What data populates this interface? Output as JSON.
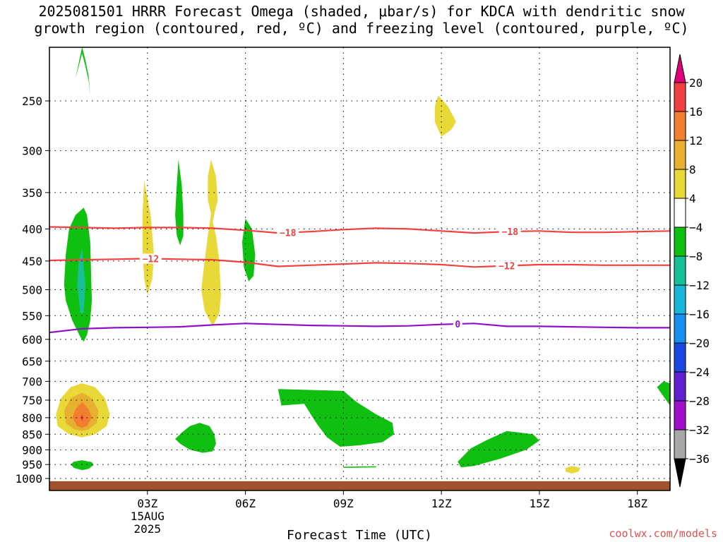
{
  "title_line1": "2025081501 HRRR Forecast Omega (shaded, μbar/s) for KDCA with dendritic snow",
  "title_line2": "growth region (contoured, red, ºC) and freezing level (contoured, purple, ºC)",
  "credit": "coolwx.com/models",
  "chart_data": {
    "type": "contour",
    "xlabel": "Forecast Time (UTC)",
    "ylabel": "",
    "xlim": [
      0,
      19
    ],
    "ylim": [
      1000,
      200
    ],
    "y_scale": "log-pressure",
    "grid": true,
    "x_ticks": [
      {
        "value": 3,
        "label": "03Z",
        "sub1": "15AUG",
        "sub2": "2025"
      },
      {
        "value": 6,
        "label": "06Z"
      },
      {
        "value": 9,
        "label": "09Z"
      },
      {
        "value": 12,
        "label": "12Z"
      },
      {
        "value": 15,
        "label": "15Z"
      },
      {
        "value": 18,
        "label": "18Z"
      }
    ],
    "y_ticks": [
      250,
      300,
      350,
      400,
      450,
      500,
      550,
      600,
      650,
      700,
      750,
      800,
      850,
      900,
      950,
      1000
    ],
    "colorbar": {
      "levels": [
        {
          "label": "20",
          "color": "#e0007a"
        },
        {
          "label": "16",
          "color": "#f04040"
        },
        {
          "label": "12",
          "color": "#f08030"
        },
        {
          "label": "8",
          "color": "#e8b030"
        },
        {
          "label": "4",
          "color": "#e8d838"
        },
        {
          "label": "−4",
          "color": "#ffffff"
        },
        {
          "label": "−8",
          "color": "#10c010"
        },
        {
          "label": "−12",
          "color": "#18c098"
        },
        {
          "label": "−16",
          "color": "#18b8d8"
        },
        {
          "label": "−20",
          "color": "#1890f0"
        },
        {
          "label": "−24",
          "color": "#1848e0"
        },
        {
          "label": "−28",
          "color": "#6020d0"
        },
        {
          "label": "−32",
          "color": "#a010c8"
        },
        {
          "label": "−36",
          "color": "#a8a8a8"
        }
      ],
      "bottom_arrow_color": "#000000"
    },
    "contours": [
      {
        "name": "dgz-minus-18",
        "label": "−18",
        "color": "#f04040",
        "points": [
          [
            0,
            397
          ],
          [
            1,
            398
          ],
          [
            2,
            399
          ],
          [
            3,
            398
          ],
          [
            4,
            398
          ],
          [
            5,
            399
          ],
          [
            6,
            402
          ],
          [
            7,
            406
          ],
          [
            8,
            404
          ],
          [
            9,
            401
          ],
          [
            10,
            399
          ],
          [
            11,
            400
          ],
          [
            12,
            403
          ],
          [
            13,
            406
          ],
          [
            14,
            404
          ],
          [
            15,
            403
          ],
          [
            16,
            405
          ],
          [
            17,
            405
          ],
          [
            18,
            404
          ],
          [
            19,
            403
          ]
        ],
        "label_x": [
          7.3,
          14.1
        ]
      },
      {
        "name": "dgz-minus-12",
        "label": "−12",
        "color": "#f04040",
        "points": [
          [
            0,
            449
          ],
          [
            1,
            448
          ],
          [
            2,
            447
          ],
          [
            3,
            446
          ],
          [
            4,
            447
          ],
          [
            5,
            448
          ],
          [
            6,
            452
          ],
          [
            7,
            459
          ],
          [
            8,
            457
          ],
          [
            9,
            455
          ],
          [
            10,
            453
          ],
          [
            11,
            454
          ],
          [
            12,
            456
          ],
          [
            13,
            460
          ],
          [
            14,
            458
          ],
          [
            15,
            456
          ],
          [
            16,
            456
          ],
          [
            17,
            457
          ],
          [
            18,
            457
          ],
          [
            19,
            457
          ]
        ],
        "label_x": [
          3.1,
          14.0
        ]
      },
      {
        "name": "freezing-level-0",
        "label": "0",
        "color": "#9010c8",
        "points": [
          [
            0,
            585
          ],
          [
            1,
            577
          ],
          [
            2,
            575
          ],
          [
            3,
            574
          ],
          [
            4,
            573
          ],
          [
            5,
            569
          ],
          [
            6,
            566
          ],
          [
            7,
            568
          ],
          [
            8,
            570
          ],
          [
            9,
            571
          ],
          [
            10,
            572
          ],
          [
            11,
            571
          ],
          [
            12,
            568
          ],
          [
            13,
            566
          ],
          [
            14,
            572
          ],
          [
            15,
            572
          ],
          [
            16,
            573
          ],
          [
            17,
            574
          ],
          [
            18,
            575
          ],
          [
            19,
            575
          ]
        ],
        "label_x": [
          12.5
        ]
      }
    ],
    "shaded_regions": [
      {
        "name": "omega-green-1",
        "value_class": "−8",
        "color": "#10c010",
        "points": [
          [
            1.0,
            205
          ],
          [
            1.1,
            215
          ],
          [
            1.2,
            228
          ],
          [
            1.25,
            245
          ],
          [
            1.2,
            232
          ],
          [
            1.1,
            220
          ],
          [
            1.0,
            210
          ],
          [
            0.85,
            225
          ],
          [
            0.8,
            230
          ]
        ]
      },
      {
        "name": "omega-green-2",
        "value_class": "−8",
        "color": "#10c010",
        "points": [
          [
            1.05,
            370
          ],
          [
            1.15,
            380
          ],
          [
            1.25,
            420
          ],
          [
            1.28,
            480
          ],
          [
            1.3,
            520
          ],
          [
            1.25,
            560
          ],
          [
            1.15,
            590
          ],
          [
            1.05,
            605
          ],
          [
            0.95,
            595
          ],
          [
            0.7,
            560
          ],
          [
            0.5,
            520
          ],
          [
            0.45,
            490
          ],
          [
            0.5,
            440
          ],
          [
            0.6,
            400
          ],
          [
            0.8,
            380
          ]
        ]
      },
      {
        "name": "omega-teal-1",
        "value_class": "−12",
        "color": "#18c098",
        "points": [
          [
            1.0,
            430
          ],
          [
            1.1,
            490
          ],
          [
            1.05,
            545
          ],
          [
            0.95,
            545
          ],
          [
            0.85,
            490
          ],
          [
            0.9,
            450
          ]
        ]
      },
      {
        "name": "omega-green-3",
        "value_class": "−8",
        "color": "#10c010",
        "points": [
          [
            3.95,
            310
          ],
          [
            4.05,
            340
          ],
          [
            4.1,
            380
          ],
          [
            4.1,
            410
          ],
          [
            4.0,
            425
          ],
          [
            3.9,
            410
          ],
          [
            3.85,
            380
          ],
          [
            3.9,
            340
          ]
        ]
      },
      {
        "name": "omega-green-4",
        "value_class": "−8",
        "color": "#10c010",
        "points": [
          [
            6.0,
            385
          ],
          [
            6.2,
            400
          ],
          [
            6.3,
            440
          ],
          [
            6.25,
            475
          ],
          [
            6.1,
            485
          ],
          [
            5.95,
            460
          ],
          [
            5.9,
            420
          ]
        ]
      },
      {
        "name": "omega-yellow-1",
        "value_class": "4",
        "color": "#e8d838",
        "points": [
          [
            2.9,
            335
          ],
          [
            3.1,
            380
          ],
          [
            3.2,
            440
          ],
          [
            3.15,
            480
          ],
          [
            3.0,
            510
          ],
          [
            2.9,
            480
          ],
          [
            2.85,
            430
          ],
          [
            2.85,
            380
          ]
        ]
      },
      {
        "name": "omega-yellow-2",
        "value_class": "4",
        "color": "#e8d838",
        "points": [
          [
            4.95,
            310
          ],
          [
            5.1,
            330
          ],
          [
            5.15,
            360
          ],
          [
            5.05,
            378
          ],
          [
            5.0,
            390
          ],
          [
            5.1,
            410
          ],
          [
            5.2,
            450
          ],
          [
            5.25,
            510
          ],
          [
            5.2,
            545
          ],
          [
            5.0,
            572
          ],
          [
            4.75,
            540
          ],
          [
            4.65,
            500
          ],
          [
            4.75,
            450
          ],
          [
            4.85,
            410
          ],
          [
            4.95,
            378
          ],
          [
            4.85,
            360
          ],
          [
            4.85,
            330
          ]
        ]
      },
      {
        "name": "omega-yellow-3",
        "value_class": "4",
        "color": "#e8d838",
        "points": [
          [
            11.9,
            245
          ],
          [
            12.2,
            255
          ],
          [
            12.45,
            270
          ],
          [
            12.3,
            278
          ],
          [
            12.0,
            285
          ],
          [
            11.8,
            270
          ],
          [
            11.8,
            255
          ]
        ]
      },
      {
        "name": "omega-yellow-4",
        "value_class": "4",
        "color": "#e8d838",
        "points": [
          [
            1.0,
            705
          ],
          [
            1.4,
            715
          ],
          [
            1.7,
            745
          ],
          [
            1.85,
            790
          ],
          [
            1.75,
            825
          ],
          [
            1.4,
            850
          ],
          [
            1.0,
            860
          ],
          [
            0.6,
            850
          ],
          [
            0.25,
            825
          ],
          [
            0.2,
            790
          ],
          [
            0.35,
            745
          ],
          [
            0.65,
            715
          ]
        ]
      },
      {
        "name": "omega-gold-1",
        "value_class": "8",
        "color": "#e8b030",
        "points": [
          [
            1.0,
            730
          ],
          [
            1.3,
            745
          ],
          [
            1.5,
            780
          ],
          [
            1.45,
            815
          ],
          [
            1.2,
            835
          ],
          [
            1.0,
            840
          ],
          [
            0.75,
            835
          ],
          [
            0.5,
            815
          ],
          [
            0.45,
            780
          ],
          [
            0.65,
            745
          ]
        ]
      },
      {
        "name": "omega-orange-1",
        "value_class": "12",
        "color": "#f08030",
        "points": [
          [
            1.0,
            755
          ],
          [
            1.2,
            775
          ],
          [
            1.3,
            800
          ],
          [
            1.15,
            825
          ],
          [
            1.0,
            830
          ],
          [
            0.85,
            825
          ],
          [
            0.7,
            800
          ],
          [
            0.8,
            775
          ]
        ]
      },
      {
        "name": "omega-red-1",
        "value_class": "16",
        "color": "#f04040",
        "points": [
          [
            1.0,
            790
          ],
          [
            1.05,
            800
          ],
          [
            1.0,
            810
          ],
          [
            0.95,
            800
          ]
        ]
      },
      {
        "name": "omega-green-5",
        "value_class": "−8",
        "color": "#10c010",
        "points": [
          [
            1.0,
            935
          ],
          [
            1.3,
            942
          ],
          [
            1.35,
            952
          ],
          [
            1.2,
            965
          ],
          [
            1.0,
            970
          ],
          [
            0.75,
            962
          ],
          [
            0.65,
            950
          ],
          [
            0.75,
            940
          ]
        ]
      },
      {
        "name": "omega-green-6",
        "value_class": "−8",
        "color": "#10c010",
        "points": [
          [
            4.6,
            815
          ],
          [
            4.9,
            825
          ],
          [
            5.05,
            850
          ],
          [
            5.1,
            880
          ],
          [
            5.0,
            905
          ],
          [
            4.7,
            910
          ],
          [
            4.3,
            900
          ],
          [
            4.0,
            880
          ],
          [
            3.85,
            865
          ],
          [
            4.05,
            845
          ],
          [
            4.3,
            825
          ]
        ]
      },
      {
        "name": "omega-green-7",
        "value_class": "−8",
        "color": "#10c010",
        "points": [
          [
            7.0,
            720
          ],
          [
            9.0,
            725
          ],
          [
            9.4,
            755
          ],
          [
            10.0,
            790
          ],
          [
            10.5,
            815
          ],
          [
            10.55,
            850
          ],
          [
            10.2,
            875
          ],
          [
            9.5,
            885
          ],
          [
            8.9,
            890
          ],
          [
            8.5,
            860
          ],
          [
            8.2,
            820
          ],
          [
            8.0,
            790
          ],
          [
            7.8,
            760
          ],
          [
            7.1,
            765
          ]
        ]
      },
      {
        "name": "omega-green-8",
        "value_class": "−8",
        "color": "#10c010",
        "points": [
          [
            14.0,
            840
          ],
          [
            14.8,
            850
          ],
          [
            15.0,
            870
          ],
          [
            14.6,
            900
          ],
          [
            13.8,
            930
          ],
          [
            13.0,
            955
          ],
          [
            12.6,
            960
          ],
          [
            12.5,
            940
          ],
          [
            12.9,
            895
          ],
          [
            13.4,
            868
          ]
        ]
      },
      {
        "name": "omega-green-9",
        "value_class": "−8",
        "color": "#10c010",
        "points": [
          [
            9.0,
            958
          ],
          [
            10.0,
            956
          ],
          [
            10.0,
            960
          ],
          [
            9.0,
            962
          ]
        ]
      },
      {
        "name": "omega-green-10",
        "value_class": "−8",
        "color": "#10c010",
        "points": [
          [
            19.0,
            705
          ],
          [
            19.0,
            765
          ],
          [
            18.8,
            740
          ],
          [
            18.6,
            715
          ],
          [
            18.8,
            700
          ]
        ]
      },
      {
        "name": "omega-yellow-5",
        "value_class": "4",
        "color": "#e8d838",
        "points": [
          [
            16.0,
            955
          ],
          [
            16.25,
            962
          ],
          [
            16.2,
            975
          ],
          [
            16.0,
            982
          ],
          [
            15.8,
            975
          ],
          [
            15.8,
            962
          ]
        ]
      }
    ],
    "terrain_color": "#a0522d",
    "terrain_top_pressure": 1010
  }
}
